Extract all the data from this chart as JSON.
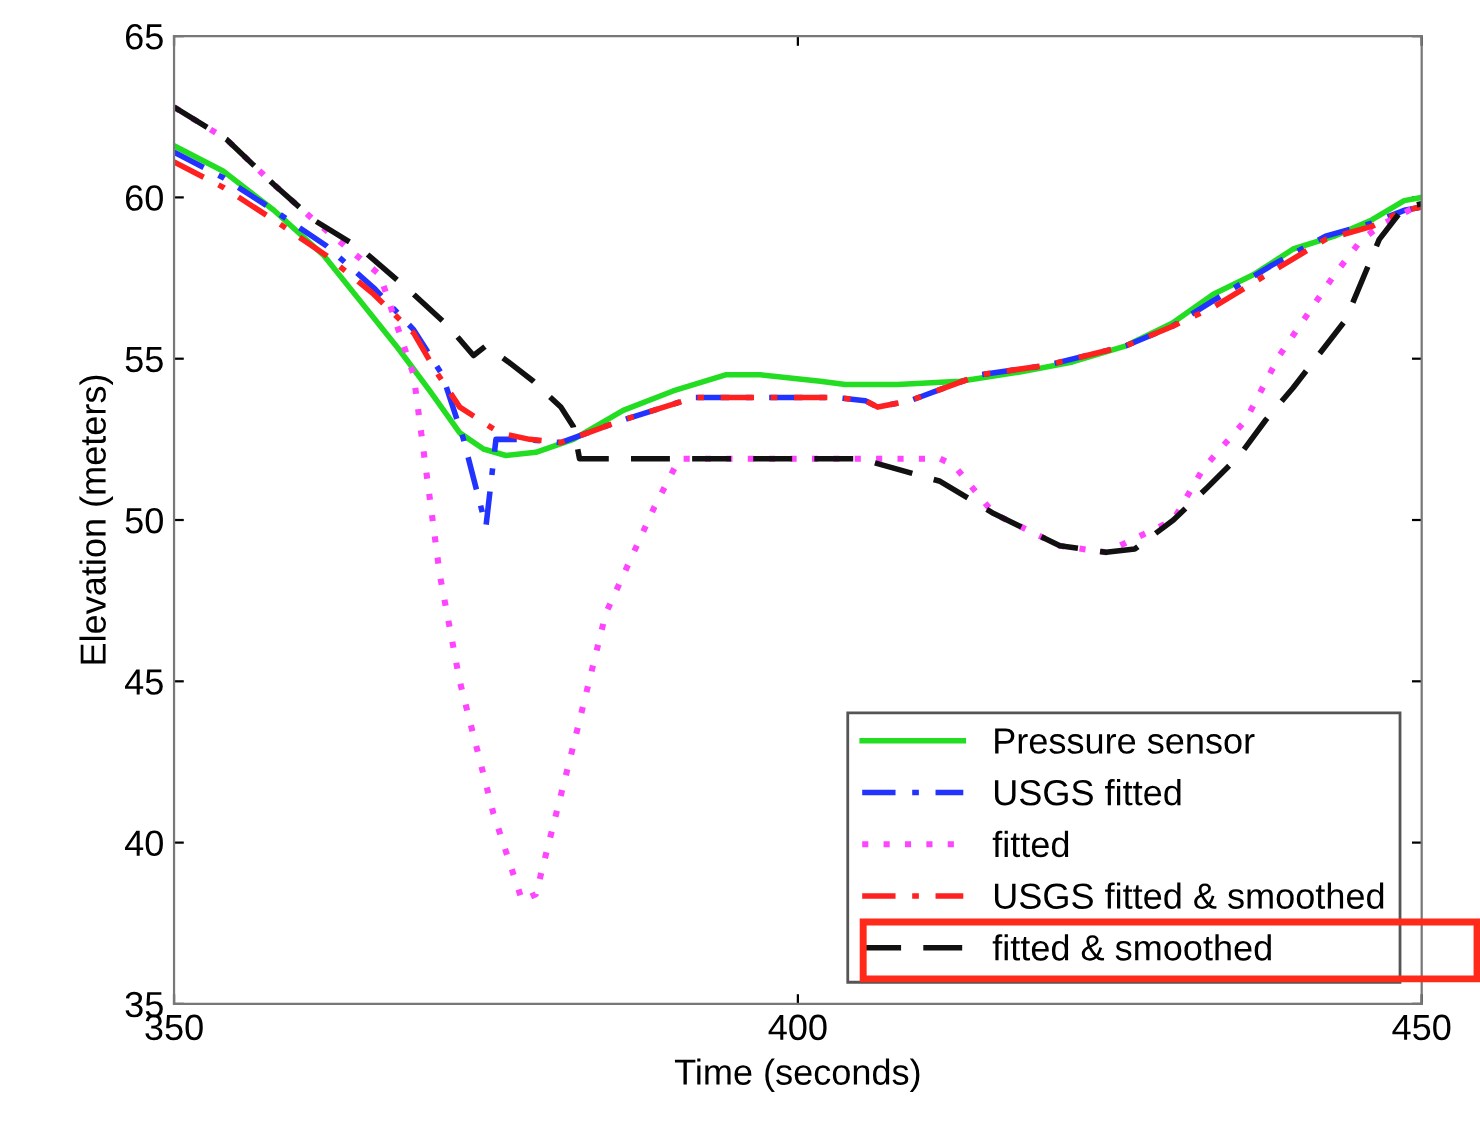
{
  "chart_data": {
    "type": "line",
    "xlabel": "Time (seconds)",
    "ylabel": "Elevation (meters)",
    "xlim": [
      350,
      450
    ],
    "xticks": [
      350,
      400,
      450
    ],
    "ylim": [
      35,
      65
    ],
    "yticks": [
      35,
      40,
      45,
      50,
      55,
      60,
      65
    ],
    "grid": false,
    "legend": "bottom right",
    "series": [
      {
        "name": "Pressure sensor",
        "color": "#22dd22",
        "line_style": "solid",
        "x": [
          350,
          354,
          358,
          362,
          364.9,
          368,
          370.5,
          372.9,
          374.8,
          376.6,
          379,
          382,
          386,
          390,
          394.2,
          397,
          401.8,
          403.8,
          408,
          413,
          418,
          422,
          426.3,
          430,
          433.3,
          436.5,
          439.7,
          443,
          446,
          448.6,
          450
        ],
        "values": [
          61.6,
          60.8,
          59.6,
          58.2,
          56.8,
          55.3,
          54.0,
          52.7,
          52.2,
          52.0,
          52.1,
          52.5,
          53.4,
          54.0,
          54.5,
          54.5,
          54.3,
          54.2,
          54.2,
          54.3,
          54.6,
          54.9,
          55.4,
          56.1,
          57.0,
          57.6,
          58.4,
          58.8,
          59.3,
          59.9,
          60.0
        ]
      },
      {
        "name": "USGS fitted",
        "color": "#2233ff",
        "line_style": "dashdot",
        "x": [
          350,
          354,
          358,
          362.2,
          366,
          369.2,
          371.5,
          373.2,
          375,
          375.8,
          378,
          381,
          386,
          391.7,
          397,
          403,
          405.4,
          406.4,
          409,
          414.6,
          420,
          426.3,
          430,
          433.3,
          438,
          442.3,
          446,
          448.6,
          450
        ],
        "values": [
          61.4,
          60.6,
          59.6,
          58.5,
          57.2,
          55.9,
          54.5,
          52.5,
          49.8,
          52.5,
          52.5,
          52.4,
          53.1,
          53.8,
          53.8,
          53.8,
          53.7,
          53.5,
          53.7,
          54.5,
          54.8,
          55.4,
          56.0,
          56.8,
          57.9,
          58.8,
          59.2,
          59.6,
          59.7
        ]
      },
      {
        "name": "fitted",
        "color": "#ff44ff",
        "line_style": "dotted",
        "x": [
          350,
          354.2,
          358,
          361.2,
          364,
          366.5,
          369.2,
          371.3,
          372.9,
          375.6,
          377.9,
          379,
          382,
          384.6,
          388.5,
          390.5,
          395,
          400,
          405,
          411.4,
          412.5,
          415.7,
          421,
          424.7,
          430.1,
          432.5,
          435.9,
          438.6,
          443,
          445.2,
          447,
          449,
          450
        ],
        "values": [
          62.8,
          61.8,
          60.4,
          59.3,
          58.4,
          57.6,
          54.5,
          48.3,
          45.0,
          40.9,
          38.2,
          38.4,
          43.0,
          47.1,
          50.4,
          51.9,
          51.9,
          51.9,
          51.9,
          51.9,
          51.7,
          50.2,
          49.2,
          49.0,
          50.0,
          51.6,
          53.1,
          55.1,
          57.6,
          58.7,
          59.2,
          59.6,
          59.7
        ]
      },
      {
        "name": "USGS fitted & smoothed",
        "color": "#ff2020",
        "line_style": "dashdot",
        "x": [
          350,
          354,
          358,
          362.2,
          366,
          369.2,
          371,
          372.9,
          376.1,
          378.5,
          381,
          386,
          391.7,
          397,
          403,
          405.4,
          406.4,
          409,
          414.6,
          420,
          426.3,
          430,
          433.3,
          438,
          442.3,
          446,
          448.6,
          450
        ],
        "values": [
          61.1,
          60.3,
          59.3,
          58.2,
          57.0,
          55.8,
          54.6,
          53.5,
          52.7,
          52.5,
          52.4,
          53.1,
          53.8,
          53.8,
          53.8,
          53.7,
          53.5,
          53.7,
          54.5,
          54.8,
          55.4,
          56.0,
          56.6,
          57.7,
          58.7,
          59.1,
          59.6,
          59.7
        ]
      },
      {
        "name": "fitted & smoothed",
        "color": "#111111",
        "line_style": "dashed",
        "x": [
          350,
          354.2,
          358,
          361.2,
          365,
          369.2,
          372,
          374,
          375,
          376.8,
          378.8,
          381,
          382,
          382.5,
          386,
          390,
          395,
          400,
          405,
          411.4,
          415.7,
          421,
          424.7,
          427,
          430.1,
          432.8,
          435.4,
          437.5,
          439.7,
          443.9,
          446.6,
          448.6,
          450
        ],
        "values": [
          62.8,
          61.8,
          60.4,
          59.3,
          58.4,
          57.0,
          56.0,
          55.1,
          55.4,
          54.9,
          54.3,
          53.5,
          52.9,
          51.9,
          51.9,
          51.9,
          51.9,
          51.9,
          51.9,
          51.2,
          50.2,
          49.2,
          49.0,
          49.1,
          50.0,
          51.0,
          52.0,
          53.1,
          54.1,
          56.2,
          58.7,
          59.7,
          59.8
        ]
      }
    ]
  }
}
